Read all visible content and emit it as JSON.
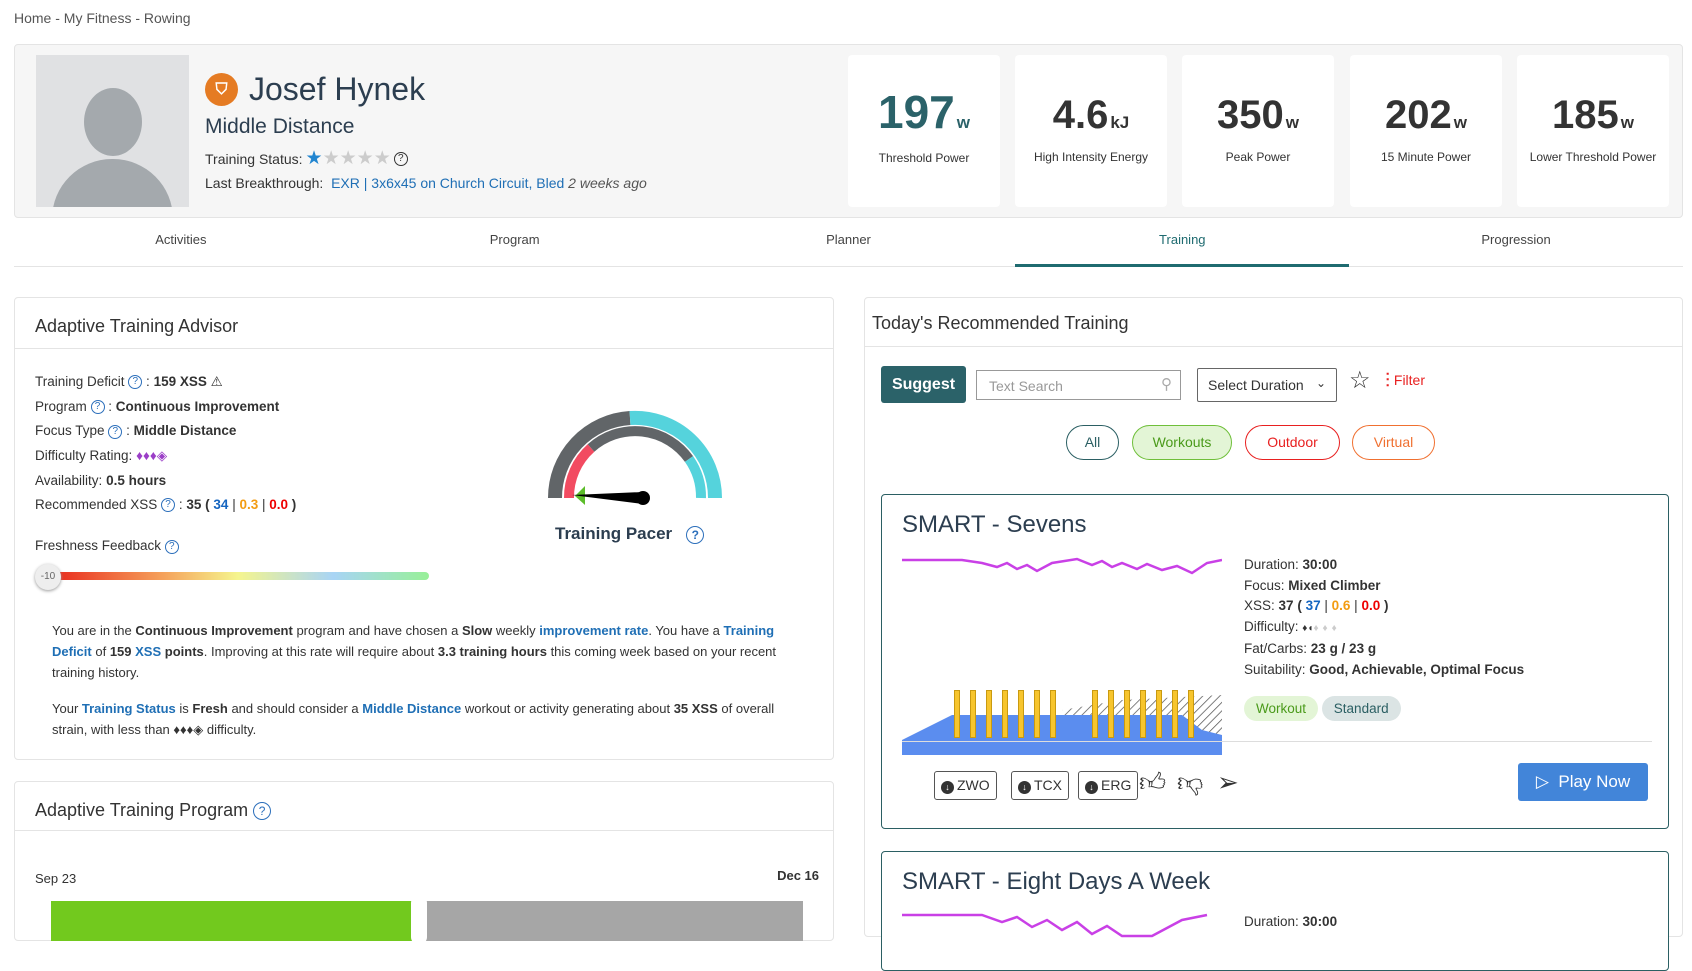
{
  "breadcrumb": "Home - My Fitness - Rowing",
  "profile": {
    "name": "Josef Hynek",
    "role": "Middle Distance",
    "status_label": "Training Status:",
    "stars_filled": 1,
    "stars_total": 5,
    "breakthrough_label": "Last Breakthrough:",
    "breakthrough_link": "EXR | 3x6x45 on Church Circuit, Bled",
    "breakthrough_time": "2 weeks ago"
  },
  "stats": [
    {
      "value": "197",
      "unit": "w",
      "label": "Threshold Power",
      "color": "#2b6269"
    },
    {
      "value": "4.6",
      "unit": "kJ",
      "label": "High Intensity Energy"
    },
    {
      "value": "350",
      "unit": "w",
      "label": "Peak Power"
    },
    {
      "value": "202",
      "unit": "w",
      "label": "15 Minute Power"
    },
    {
      "value": "185",
      "unit": "w",
      "label": "Lower Threshold Power"
    }
  ],
  "tabs": [
    "Activities",
    "Program",
    "Planner",
    "Training",
    "Progression"
  ],
  "active_tab": "Training",
  "advisor": {
    "title": "Adaptive Training Advisor",
    "deficit_label": "Training Deficit",
    "deficit_value": "159 XSS",
    "program_label": "Program",
    "program_value": "Continuous Improvement",
    "focus_label": "Focus Type",
    "focus_value": "Middle Distance",
    "difficulty_label": "Difficulty Rating:",
    "difficulty_value": "♦♦♦◈",
    "availability_label": "Availability:",
    "availability_value": "0.5 hours",
    "xss_label": "Recommended XSS",
    "xss_total": "35",
    "xss_blue": "34",
    "xss_orange": "0.3",
    "xss_red": "0.0",
    "freshness_label": "Freshness Feedback",
    "freshness_value": "-10",
    "pacer_label": "Training Pacer",
    "p1": [
      "You are in the ",
      "Continuous Improvement",
      " program and have chosen a ",
      "Slow",
      " weekly ",
      "improvement rate",
      ". You have a ",
      "Training Deficit",
      " of ",
      "159",
      " ",
      "XSS",
      " points",
      ". Improving at this rate will require about ",
      "3.3 training hours",
      " this coming week based on your recent training history."
    ],
    "p2": [
      "Your ",
      "Training Status",
      " is ",
      "Fresh",
      " and should consider a ",
      "Middle Distance",
      " workout or activity generating about ",
      "35 XSS",
      " of overall strain, with less than ",
      "♦♦♦◈",
      " difficulty."
    ]
  },
  "program": {
    "title": "Adaptive Training Program",
    "start": "Sep 23",
    "end": "Dec 16",
    "progress": 0.49
  },
  "recommended": {
    "title": "Today's Recommended Training",
    "suggest": "Suggest",
    "search_placeholder": "Text Search",
    "duration": "Select Duration",
    "filter": "Filter",
    "pills": [
      "All",
      "Workouts",
      "Outdoor",
      "Virtual"
    ],
    "workouts": [
      {
        "title": "SMART - Sevens",
        "duration": "30:00",
        "focus": "Mixed Climber",
        "xss": "37",
        "xss_blue": "37",
        "xss_orange": "0.6",
        "xss_red": "0.0",
        "difficulty": "♦◖",
        "difficulty_empty": "♦♦♦",
        "fat_carbs": "23 g / 23 g",
        "suitability": "Good, Achievable, Optimal Focus",
        "tags": [
          "Workout",
          "Standard"
        ],
        "downloads": [
          "ZWO",
          "TCX",
          "ERG"
        ],
        "play": "Play Now"
      },
      {
        "title": "SMART - Eight Days A Week",
        "duration": "30:00"
      }
    ],
    "labels": {
      "duration": "Duration:",
      "focus": "Focus:",
      "xss": "XSS:",
      "difficulty": "Difficulty:",
      "fat_carbs": "Fat/Carbs:",
      "suitability": "Suitability:"
    }
  }
}
